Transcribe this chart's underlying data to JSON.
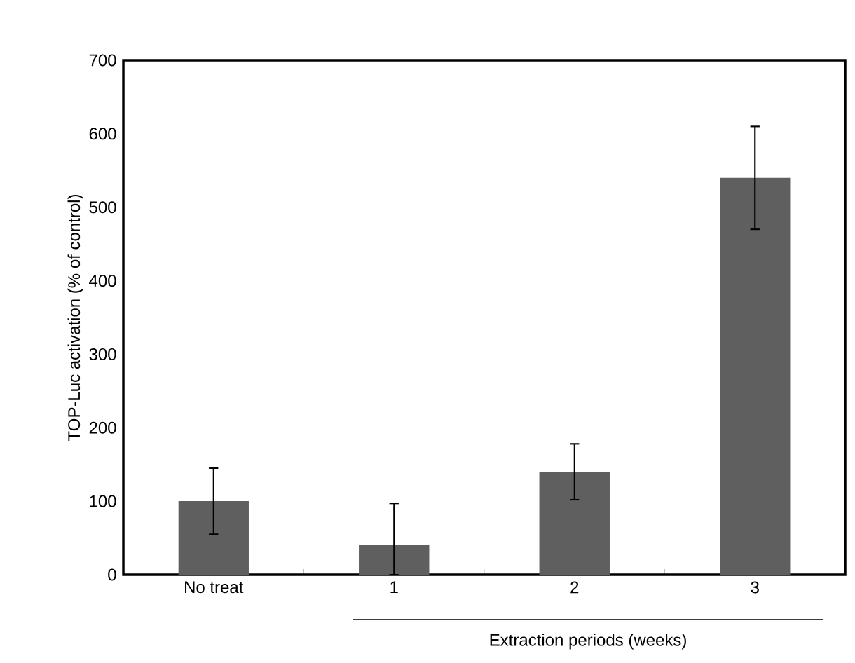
{
  "chart_data": {
    "type": "bar",
    "categories": [
      "No treat",
      "1",
      "2",
      "3"
    ],
    "values": [
      100,
      40,
      140,
      540
    ],
    "errors": [
      45,
      [
        0,
        97
      ],
      38,
      70
    ],
    "color": "#5f5f5f",
    "ylabel": "TOP-Luc activation  (% of  control)",
    "xlabel": "Extraction  periods  (weeks)",
    "ylim": [
      0,
      700
    ],
    "yticks": [
      0,
      100,
      200,
      300,
      400,
      500,
      600,
      700
    ],
    "grid": false
  }
}
